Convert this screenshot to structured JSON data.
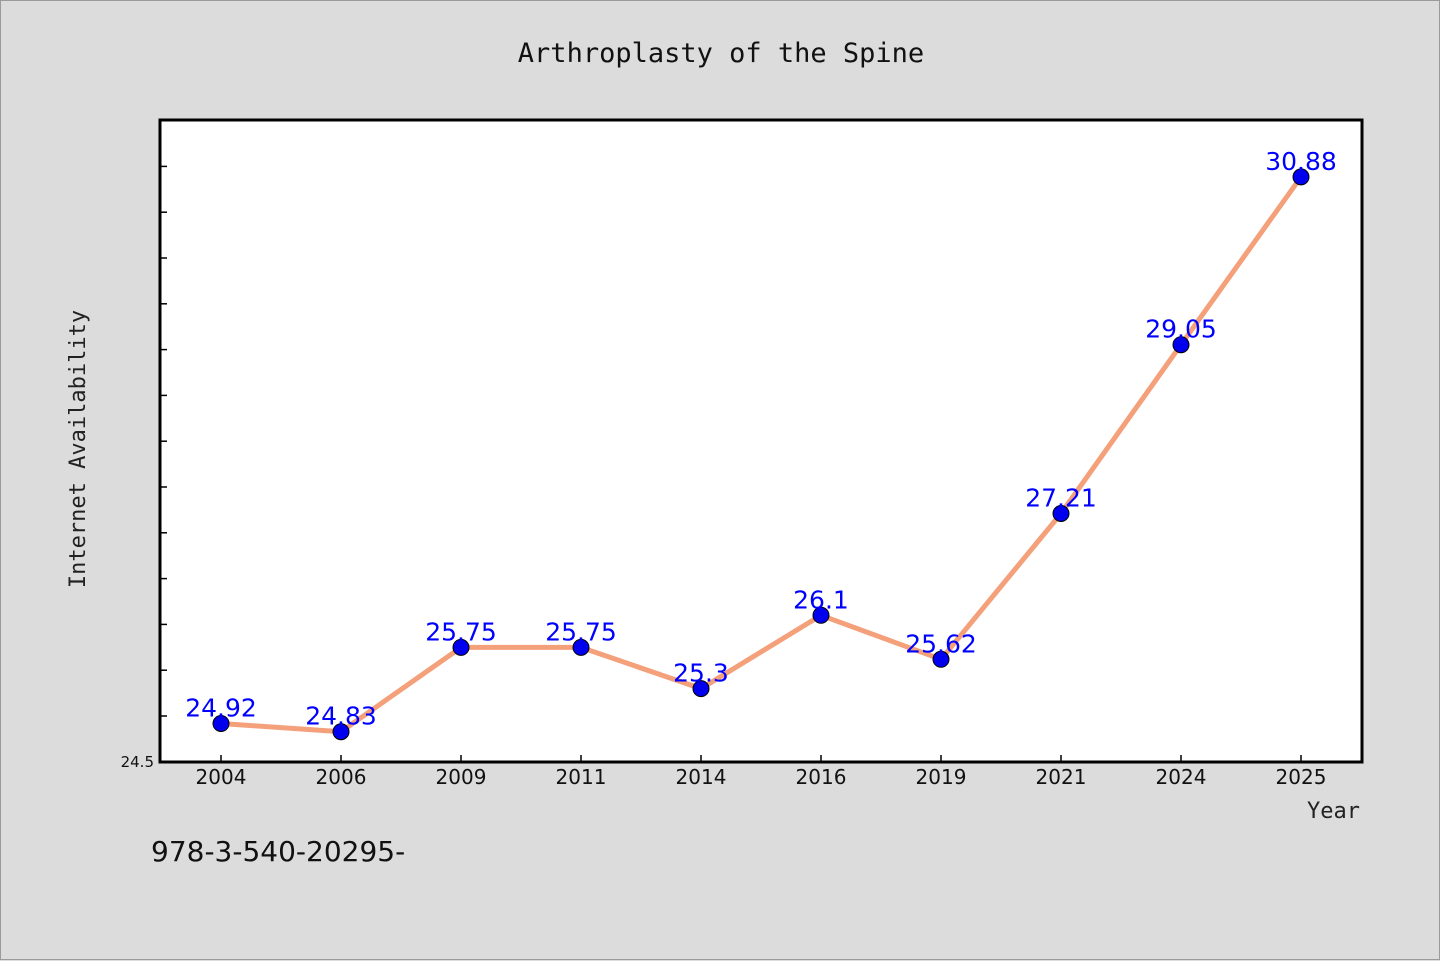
{
  "chart_data": {
    "type": "line",
    "title": "Arthroplasty of the Spine",
    "xlabel": "Year",
    "ylabel": "Internet Availability",
    "categories": [
      "2004",
      "2006",
      "2009",
      "2011",
      "2014",
      "2016",
      "2019",
      "2021",
      "2024",
      "2025"
    ],
    "series": [
      {
        "values": [
          24.92,
          24.83,
          25.75,
          25.75,
          25.3,
          26.1,
          25.62,
          27.21,
          29.05,
          30.88
        ]
      }
    ],
    "y_min_label": "24.5",
    "ylim": [
      24.5,
      31.5
    ],
    "grid": false,
    "colors": {
      "line": "#f4a07a",
      "marker": "#0000ee",
      "label": "#0000ff",
      "plot_bg": "#ffffff",
      "page_bg": "#dcdcdc"
    }
  },
  "footer": {
    "text": "978-3-540-20295-"
  }
}
